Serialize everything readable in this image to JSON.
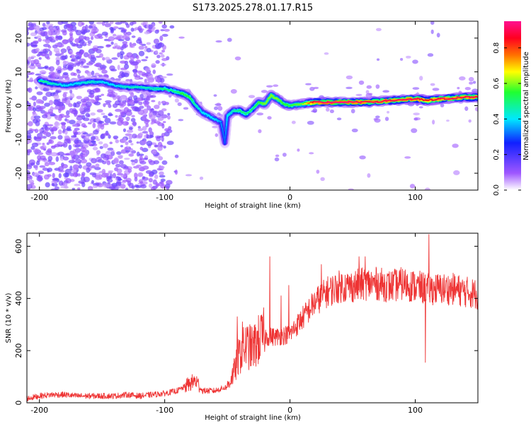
{
  "title": "S173.2025.278.01.17.R15",
  "chart_data": [
    {
      "type": "heatmap",
      "name": "spectrogram",
      "xlabel": "Height of straight line (km)",
      "ylabel": "Frequency (Hz)",
      "xlim": [
        -210,
        150
      ],
      "ylim": [
        -25,
        25
      ],
      "xticks": [
        -200,
        -100,
        0,
        100
      ],
      "yticks": [
        -20,
        -10,
        0,
        10,
        20
      ],
      "colorbar": {
        "label": "Normalized spectral amplitude",
        "range": [
          0.0,
          0.95
        ],
        "ticks": [
          0.0,
          0.2,
          0.4,
          0.6,
          0.8
        ],
        "colors": [
          "#ffffff",
          "#9f57ff",
          "#1020ff",
          "#00e8ff",
          "#20ff30",
          "#ffff00",
          "#ff7000",
          "#ff0020",
          "#ff1090"
        ]
      },
      "ridge": {
        "x": [
          -200,
          -190,
          -180,
          -170,
          -160,
          -150,
          -140,
          -130,
          -120,
          -110,
          -100,
          -90,
          -85,
          -80,
          -75,
          -70,
          -65,
          -60,
          -55,
          -52,
          -50,
          -45,
          -40,
          -35,
          -30,
          -25,
          -20,
          -15,
          -10,
          -5,
          0,
          10,
          20,
          40,
          60,
          80,
          100,
          110,
          120,
          140,
          150
        ],
        "freq": [
          7.5,
          6.5,
          6,
          6.5,
          7,
          7,
          6,
          5.5,
          5.5,
          5,
          5,
          4,
          3.5,
          2.5,
          0,
          -2,
          -3,
          -4,
          -5,
          -11,
          -3,
          -1.5,
          -1.5,
          -2.5,
          -1,
          1,
          0.5,
          3,
          2,
          0.5,
          0,
          0.5,
          1,
          1,
          1,
          1.5,
          2,
          1.5,
          2,
          2.5,
          2.5
        ],
        "amp": [
          0.5,
          0.45,
          0.4,
          0.4,
          0.45,
          0.4,
          0.4,
          0.45,
          0.45,
          0.45,
          0.5,
          0.5,
          0.55,
          0.55,
          0.45,
          0.4,
          0.4,
          0.4,
          0.35,
          0.3,
          0.4,
          0.45,
          0.5,
          0.5,
          0.5,
          0.55,
          0.6,
          0.6,
          0.6,
          0.55,
          0.55,
          0.6,
          0.9,
          0.95,
          0.9,
          0.9,
          0.9,
          0.85,
          0.9,
          0.9,
          0.9
        ]
      }
    },
    {
      "type": "line",
      "name": "snr",
      "xlabel": "Height of straight line (km)",
      "ylabel": "SNR (10 * v/v)",
      "xlim": [
        -210,
        150
      ],
      "ylim": [
        0,
        650
      ],
      "xticks": [
        -200,
        -100,
        0,
        100
      ],
      "yticks": [
        0,
        200,
        400,
        600
      ],
      "color": "#ee3333",
      "x": [
        -210,
        -200,
        -190,
        -180,
        -170,
        -160,
        -150,
        -140,
        -130,
        -120,
        -110,
        -100,
        -90,
        -80,
        -75,
        -70,
        -60,
        -50,
        -45,
        -40,
        -35,
        -30,
        -25,
        -20,
        -10,
        0,
        10,
        20,
        30,
        40,
        50,
        60,
        70,
        80,
        90,
        100,
        110,
        120,
        130,
        140,
        150
      ],
      "y": [
        15,
        25,
        30,
        30,
        25,
        25,
        25,
        25,
        30,
        25,
        30,
        35,
        45,
        70,
        80,
        45,
        45,
        60,
        110,
        180,
        210,
        200,
        230,
        250,
        250,
        260,
        320,
        380,
        420,
        440,
        440,
        450,
        450,
        440,
        450,
        440,
        430,
        430,
        430,
        420,
        410
      ],
      "spikes": [
        {
          "x": -77,
          "y": 95
        },
        {
          "x": -42,
          "y": 330
        },
        {
          "x": -38,
          "y": 310
        },
        {
          "x": -16,
          "y": 560
        },
        {
          "x": -7,
          "y": 410
        },
        {
          "x": -1,
          "y": 450
        },
        {
          "x": 25,
          "y": 530
        },
        {
          "x": 55,
          "y": 560
        },
        {
          "x": 60,
          "y": 560
        },
        {
          "x": 111,
          "y": 645
        },
        {
          "x": 108,
          "y": 155
        }
      ]
    }
  ]
}
